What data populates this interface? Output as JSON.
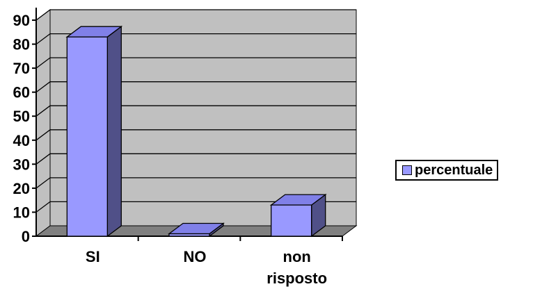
{
  "chart_data": {
    "type": "bar",
    "categories": [
      "SI",
      "NO",
      "non risposto"
    ],
    "category_lines": [
      [
        "SI"
      ],
      [
        "NO"
      ],
      [
        "non",
        "risposto"
      ]
    ],
    "series": [
      {
        "name": "percentuale",
        "values": [
          83,
          1,
          13
        ]
      }
    ],
    "ylim": [
      0,
      90
    ],
    "yticks": [
      "0",
      "10",
      "20",
      "30",
      "40",
      "50",
      "60",
      "70",
      "80",
      "90"
    ],
    "grid": true,
    "style": "3d-bar",
    "legend_position": "right",
    "colors": {
      "bar_front": "#9999ff",
      "bar_top": "#8080e8",
      "bar_side": "#505088",
      "plot_wall": "#c0c0c0",
      "plot_floor": "#808080",
      "gridline": "#000000"
    }
  }
}
